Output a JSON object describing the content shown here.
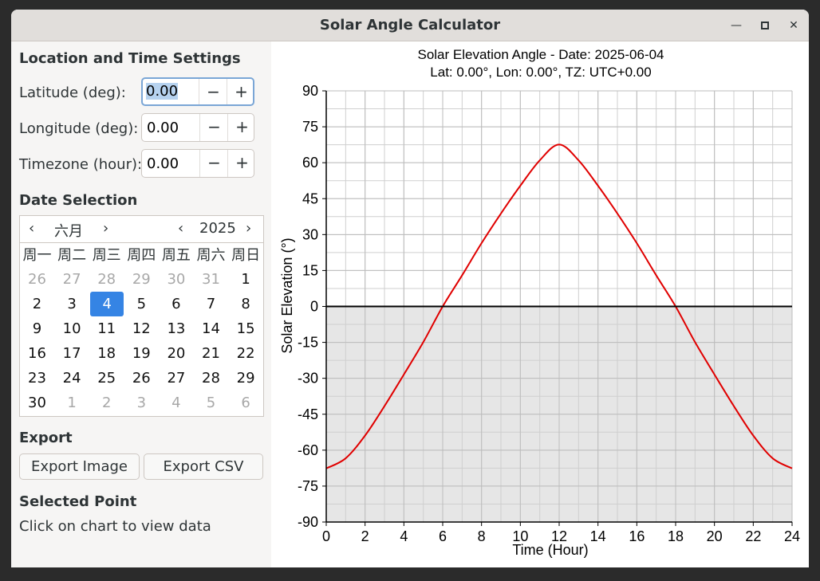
{
  "window": {
    "title": "Solar Angle Calculator"
  },
  "location": {
    "section_title": "Location and Time Settings",
    "fields": [
      {
        "label": "Latitude (deg):",
        "value": "0.00"
      },
      {
        "label": "Longitude (deg):",
        "value": "0.00"
      },
      {
        "label": "Timezone (hour):",
        "value": "0.00"
      }
    ],
    "minus": "−",
    "plus": "+"
  },
  "date": {
    "section_title": "Date Selection",
    "month": "六月",
    "year": "2025",
    "prev": "‹",
    "next": "›",
    "weekdays": [
      "周一",
      "周二",
      "周三",
      "周四",
      "周五",
      "周六",
      "周日"
    ],
    "weeks": [
      [
        "26",
        "27",
        "28",
        "29",
        "30",
        "31",
        "1"
      ],
      [
        "2",
        "3",
        "4",
        "5",
        "6",
        "7",
        "8"
      ],
      [
        "9",
        "10",
        "11",
        "12",
        "13",
        "14",
        "15"
      ],
      [
        "16",
        "17",
        "18",
        "19",
        "20",
        "21",
        "22"
      ],
      [
        "23",
        "24",
        "25",
        "26",
        "27",
        "28",
        "29"
      ],
      [
        "30",
        "1",
        "2",
        "3",
        "4",
        "5",
        "6"
      ]
    ],
    "selected_day": "4"
  },
  "export": {
    "section_title": "Export",
    "image_label": "Export Image",
    "csv_label": "Export CSV"
  },
  "selected_point": {
    "section_title": "Selected Point",
    "info": "Click on chart to view data"
  },
  "chart_data": {
    "type": "line",
    "title": "Solar Elevation Angle - Date: 2025-06-04",
    "subtitle": "Lat: 0.00°, Lon: 0.00°, TZ: UTC+0.00",
    "xlabel": "Time (Hour)",
    "ylabel": "Solar Elevation (°)",
    "xlim": [
      0,
      24
    ],
    "ylim": [
      -90,
      90
    ],
    "xticks": [
      0,
      2,
      4,
      6,
      8,
      10,
      12,
      14,
      16,
      18,
      20,
      22,
      24
    ],
    "yticks": [
      90,
      75,
      60,
      45,
      30,
      15,
      0,
      -15,
      -30,
      -45,
      -60,
      -75,
      -90
    ],
    "grid": true,
    "line_color": "#e00000",
    "below_horizon_fill": "#e6e6e6",
    "series": [
      {
        "x": [
          0,
          1,
          2,
          3,
          4,
          5,
          6,
          7,
          8,
          9,
          10,
          11,
          12,
          13,
          14,
          15,
          16,
          17,
          18,
          19,
          20,
          21,
          22,
          23,
          24
        ],
        "y": [
          -67.6,
          -63.4,
          -53.9,
          -41.6,
          -28.4,
          -14.9,
          0.0,
          13.0,
          26.4,
          38.8,
          50.4,
          61.0,
          67.6,
          61.0,
          50.4,
          38.8,
          26.4,
          13.0,
          0.0,
          -14.9,
          -28.4,
          -41.6,
          -53.9,
          -63.4,
          -67.6
        ]
      }
    ]
  }
}
